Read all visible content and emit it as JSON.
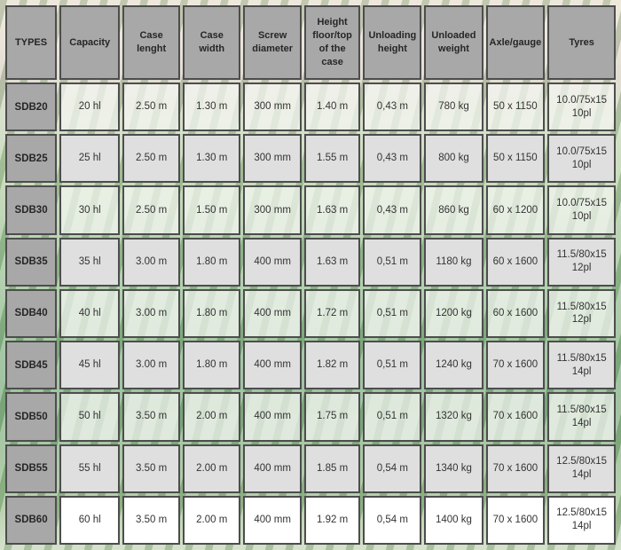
{
  "page": {
    "description": "Product technical specification table over vineyard photo background"
  },
  "colors": {
    "header_bg": "#a8a8a8",
    "row_label_bg": "#a8a8a8",
    "cell_border": "#4d4d4d",
    "solid_row_bg": "#dfdfdf",
    "translucent_row_bg": "rgba(245,246,242,0.72)",
    "last_row_bg": "#ffffff",
    "header_text": "#262626",
    "cell_text": "#333333"
  },
  "table": {
    "headers": [
      "TYPES",
      "Capacity",
      "Case lenght",
      "Case width",
      "Screw diameter",
      "Height floor/top of the case",
      "Unloading height",
      "Unloaded weight",
      "Axle/gauge",
      "Tyres"
    ],
    "rows": [
      {
        "label": "SDB20",
        "values": [
          "20 hl",
          "2.50 m",
          "1.30 m",
          "300 mm",
          "1.40 m",
          "0,43 m",
          "780 kg",
          "50 x 1150",
          "10.0/75x15 10pl"
        ]
      },
      {
        "label": "SDB25",
        "values": [
          "25 hl",
          "2.50 m",
          "1.30 m",
          "300 mm",
          "1.55 m",
          "0,43 m",
          "800 kg",
          "50 x 1150",
          "10.0/75x15 10pl"
        ]
      },
      {
        "label": "SDB30",
        "values": [
          "30 hl",
          "2.50 m",
          "1.50 m",
          "300 mm",
          "1.63 m",
          "0,43 m",
          "860 kg",
          "60 x 1200",
          "10.0/75x15 10pl"
        ]
      },
      {
        "label": "SDB35",
        "values": [
          "35 hl",
          "3.00 m",
          "1.80 m",
          "400 mm",
          "1.63 m",
          "0,51 m",
          "1180 kg",
          "60 x 1600",
          "11.5/80x15 12pl"
        ]
      },
      {
        "label": "SDB40",
        "values": [
          "40 hl",
          "3.00 m",
          "1.80 m",
          "400 mm",
          "1.72 m",
          "0,51 m",
          "1200 kg",
          "60 x 1600",
          "11.5/80x15 12pl"
        ]
      },
      {
        "label": "SDB45",
        "values": [
          "45 hl",
          "3.00 m",
          "1.80 m",
          "400 mm",
          "1.82 m",
          "0,51 m",
          "1240 kg",
          "70 x 1600",
          "11.5/80x15 14pl"
        ]
      },
      {
        "label": "SDB50",
        "values": [
          "50 hl",
          "3.50 m",
          "2.00 m",
          "400 mm",
          "1.75 m",
          "0,51 m",
          "1320 kg",
          "70 x 1600",
          "11.5/80x15 14pl"
        ]
      },
      {
        "label": "SDB55",
        "values": [
          "55 hl",
          "3.50 m",
          "2.00 m",
          "400 mm",
          "1.85 m",
          "0,54 m",
          "1340 kg",
          "70 x 1600",
          "12.5/80x15 14pl"
        ]
      },
      {
        "label": "SDB60",
        "values": [
          "60 hl",
          "3.50 m",
          "2.00 m",
          "400 mm",
          "1.92 m",
          "0,54 m",
          "1400 kg",
          "70 x 1600",
          "12.5/80x15 14pl"
        ]
      }
    ]
  }
}
